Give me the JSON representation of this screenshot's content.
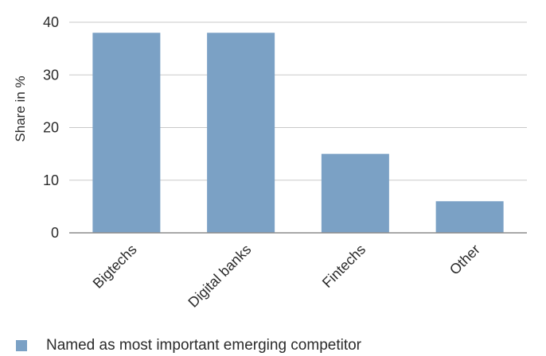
{
  "chart_data": {
    "type": "bar",
    "title": "",
    "xlabel": "",
    "ylabel": "Share in %",
    "categories": [
      "Bigtechs",
      "Digital banks",
      "Fintechs",
      "Other"
    ],
    "series": [
      {
        "name": "Named as most important emerging competitor",
        "values": [
          38,
          38,
          15,
          6
        ],
        "color": "#7ba1c5"
      }
    ],
    "ylim": [
      0,
      40
    ],
    "yticks": [
      "0",
      "10",
      "20",
      "30",
      "40"
    ],
    "grid": true,
    "legend_position": "bottom-left"
  }
}
